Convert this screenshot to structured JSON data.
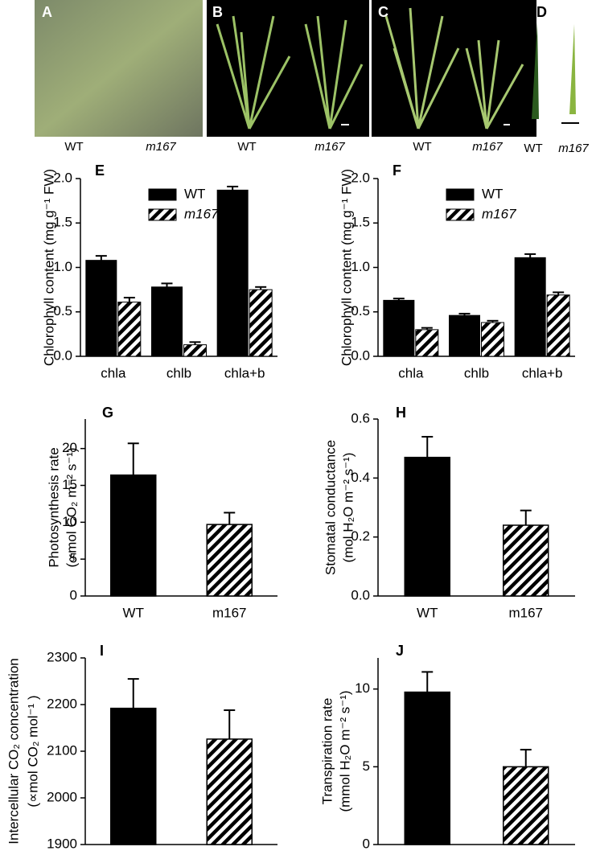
{
  "photos": [
    {
      "label": "A",
      "left": "WT",
      "right": "m167"
    },
    {
      "label": "B",
      "left": "WT",
      "right": "m167"
    },
    {
      "label": "C",
      "left": "WT",
      "right": "m167"
    },
    {
      "label": "D",
      "left": "WT",
      "right": "m167"
    }
  ],
  "chart_data": [
    {
      "type": "bar",
      "label": "E",
      "categories": [
        "chla",
        "chlb",
        "chla+b"
      ],
      "series": [
        {
          "name": "WT",
          "color": "#000000",
          "hatch": false,
          "values": [
            1.08,
            0.78,
            1.87
          ],
          "errors": [
            0.05,
            0.04,
            0.04
          ]
        },
        {
          "name": "m167",
          "color": "#ffffff",
          "hatch": true,
          "values": [
            0.61,
            0.13,
            0.75
          ],
          "errors": [
            0.05,
            0.03,
            0.03
          ]
        }
      ],
      "ylabel": [
        "Chlorophyll content (mg g⁻¹ FW)"
      ],
      "ylim": [
        0,
        2
      ],
      "yticks": [
        {
          "value": 0,
          "label": "0.0"
        },
        0.5,
        {
          "value": 1,
          "label": "1.0"
        },
        1.5,
        {
          "value": 2,
          "label": "2.0"
        }
      ],
      "legend": "top"
    },
    {
      "type": "bar",
      "label": "F",
      "categories": [
        "chla",
        "chlb",
        "chla+b"
      ],
      "series": [
        {
          "name": "WT",
          "color": "#000000",
          "hatch": false,
          "values": [
            0.63,
            0.46,
            1.11
          ],
          "errors": [
            0.02,
            0.02,
            0.04
          ]
        },
        {
          "name": "m167",
          "color": "#ffffff",
          "hatch": true,
          "values": [
            0.3,
            0.38,
            0.69
          ],
          "errors": [
            0.02,
            0.02,
            0.03
          ]
        }
      ],
      "ylabel": [
        "Chlorophyll content (mg g⁻¹ FW)"
      ],
      "ylim": [
        0,
        2
      ],
      "yticks": [
        {
          "value": 0,
          "label": "0.0"
        },
        0.5,
        {
          "value": 1,
          "label": "1.0"
        },
        1.5,
        {
          "value": 2,
          "label": "2.0"
        }
      ],
      "legend": "top"
    },
    {
      "type": "bar",
      "label": "G",
      "categories": [
        "WT",
        "m167"
      ],
      "values": [
        16.4,
        9.7
      ],
      "errors": [
        4.3,
        1.6
      ],
      "hatch": [
        false,
        true
      ],
      "ylabel": [
        "Photosynthesis rate",
        "(∝mol CO₂ m⁻² s⁻¹)"
      ],
      "ylim": [
        0,
        24
      ],
      "yticks": [
        0,
        5,
        10,
        15,
        20
      ]
    },
    {
      "type": "bar",
      "label": "H",
      "categories": [
        "WT",
        "m167"
      ],
      "values": [
        0.47,
        0.24
      ],
      "errors": [
        0.07,
        0.05
      ],
      "hatch": [
        false,
        true
      ],
      "ylabel": [
        "Stomatal conductance",
        "(mol H₂O m⁻² s⁻¹)"
      ],
      "ylim": [
        0,
        0.6
      ],
      "yticks": [
        {
          "value": 0,
          "label": "0.0"
        },
        0.2,
        0.4,
        0.6
      ]
    },
    {
      "type": "bar",
      "label": "I",
      "categories": [
        "WT",
        "m167"
      ],
      "values": [
        2192,
        2126
      ],
      "errors": [
        63,
        62
      ],
      "hatch": [
        false,
        true
      ],
      "ylabel": [
        "Intercellular CO₂ concentration",
        "(∝mol CO₂ mol⁻¹ )"
      ],
      "ylim": [
        1900,
        2300
      ],
      "yticks": [
        1900,
        2000,
        2100,
        2200,
        2300
      ]
    },
    {
      "type": "bar",
      "label": "J",
      "categories": [
        "WT",
        "m167"
      ],
      "values": [
        9.8,
        5.0
      ],
      "errors": [
        1.3,
        1.1
      ],
      "hatch": [
        false,
        true
      ],
      "ylabel": [
        "Transpiration rate",
        "(mmol H₂O m⁻² s⁻¹)"
      ],
      "ylim": [
        0,
        12
      ],
      "yticks": [
        0,
        5,
        10
      ]
    }
  ]
}
